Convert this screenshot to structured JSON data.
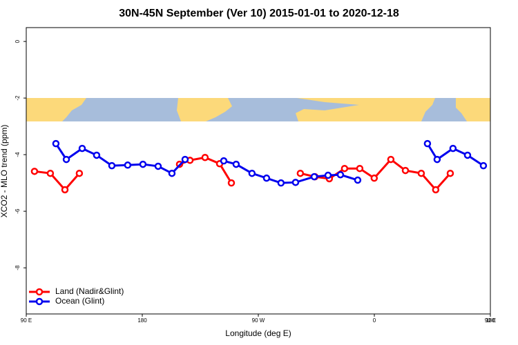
{
  "chart_data": {
    "type": "line",
    "title": "30N-45N September (Ver 10)   2015-01-01 to 2020-12-18",
    "x_label": "Longitude (deg E)",
    "y_label": "XCO2 - MLO trend (ppm)",
    "xlim": [
      90,
      450
    ],
    "xticks": [
      {
        "value": 90,
        "label": "90 E"
      },
      180,
      {
        "value": 270,
        "label": "90 W"
      },
      {
        "value": 360,
        "label": "0"
      },
      {
        "value": 450,
        "label": "90 E"
      },
      {
        "value": 540,
        "label": "180"
      }
    ],
    "ylim": [
      -9.63,
      0.49
    ],
    "yticks": [
      0,
      -2,
      -4,
      -6,
      -8
    ],
    "legend": "bottom-left",
    "series": [
      {
        "name": "Land (Nadir&Glint)",
        "color": "#ff0000",
        "x": [
          96.4,
          108.7,
          120,
          131.2,
          null,
          208.9,
          217,
          228.7,
          240,
          249.1,
          null,
          302.6,
          313.9,
          325.1,
          336.9,
          348.7,
          359.9,
          372.8,
          384.1,
          396.4,
          407.6,
          418.9
        ],
        "values": [
          -4.59,
          -4.66,
          -5.24,
          -4.66,
          null,
          -4.34,
          -4.2,
          -4.1,
          -4.32,
          -5.0,
          null,
          -4.66,
          -4.78,
          -4.85,
          -4.49,
          -4.49,
          -4.83,
          -4.17,
          -4.56,
          -4.66,
          -5.24,
          -4.66
        ]
      },
      {
        "name": "Ocean (Glint)",
        "color": "#0000ee",
        "x": [
          113,
          121.1,
          133.4,
          144.6,
          156.4,
          168.7,
          180.5,
          192.3,
          203,
          213.2,
          null,
          243.2,
          252.8,
          265.1,
          276.4,
          287.6,
          298.9,
          313.4,
          324.1,
          333.7,
          347.1,
          null,
          401.2,
          408.7,
          421,
          432.3,
          444.6
        ],
        "values": [
          -3.61,
          -4.17,
          -3.78,
          -4.02,
          -4.39,
          -4.37,
          -4.34,
          -4.41,
          -4.66,
          -4.17,
          null,
          -4.22,
          -4.34,
          -4.66,
          -4.83,
          -5.0,
          -4.98,
          -4.78,
          -4.73,
          -4.71,
          -4.9,
          null,
          -3.61,
          -4.17,
          -3.78,
          -4.02,
          -4.39
        ]
      }
    ]
  }
}
